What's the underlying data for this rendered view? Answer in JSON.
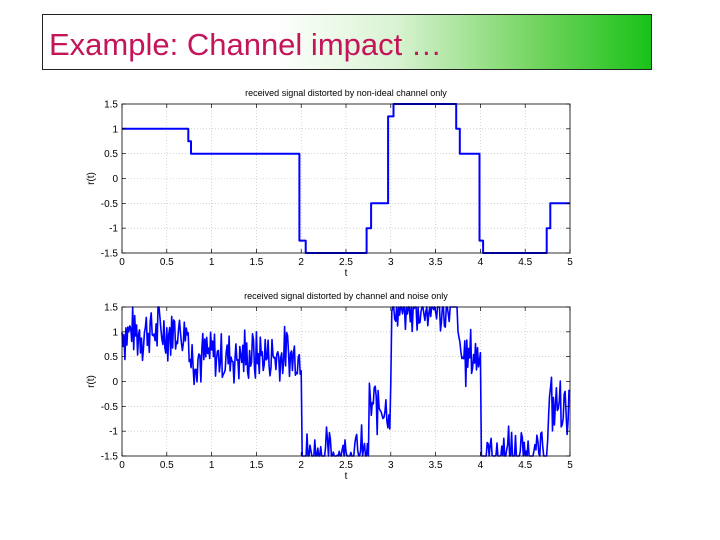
{
  "slide": {
    "title": "Example: Channel impact …"
  },
  "chart_data": [
    {
      "type": "line",
      "title": "received signal distorted by non-ideal channel only",
      "xlabel": "t",
      "ylabel": "r(t)",
      "xlim": [
        0,
        5
      ],
      "ylim": [
        -1.5,
        1.5
      ],
      "xticks": [
        "0",
        "0.5",
        "1",
        "1.5",
        "2",
        "2.5",
        "3",
        "3.5",
        "4",
        "4.5",
        "5"
      ],
      "yticks": [
        "1.5",
        "1",
        "0.5",
        "0",
        "-0.5",
        "-1",
        "-1.5"
      ],
      "grid": true,
      "color": "#0000ff",
      "x": [
        0,
        0.74,
        0.74,
        0.77,
        0.77,
        1.05,
        1.6,
        1.98,
        1.98,
        2.05,
        2.05,
        2.35,
        2.73,
        2.73,
        2.78,
        2.78,
        2.97,
        2.97,
        3.03,
        3.03,
        3.25,
        3.73,
        3.73,
        3.77,
        3.77,
        3.99,
        3.99,
        4.03,
        4.03,
        4.45,
        4.74,
        4.74,
        4.78,
        4.78,
        5
      ],
      "y": [
        1,
        1,
        0.75,
        0.75,
        0.5,
        0.5,
        0.5,
        0.5,
        -1.25,
        -1.25,
        -1.5,
        -1.5,
        -1.5,
        -1.0,
        -1.0,
        -0.5,
        -0.5,
        1.25,
        1.25,
        1.5,
        1.5,
        1.5,
        1.0,
        1.0,
        0.5,
        0.5,
        -1.25,
        -1.25,
        -1.5,
        -1.5,
        -1.5,
        -1.0,
        -1.0,
        -0.5,
        -0.5
      ]
    },
    {
      "type": "line",
      "title": "received signal distorted by channel and noise only",
      "xlabel": "t",
      "ylabel": "r(t)",
      "xlim": [
        0,
        5
      ],
      "ylim": [
        -1.5,
        1.5
      ],
      "xticks": [
        "0",
        "0.5",
        "1",
        "1.5",
        "2",
        "2.5",
        "3",
        "3.5",
        "4",
        "4.5",
        "5"
      ],
      "yticks": [
        "1.5",
        "1",
        "0.5",
        "0",
        "-0.5",
        "-1",
        "-1.5"
      ],
      "grid": true,
      "color": "#0000ff",
      "clean_signal": {
        "x": [
          0,
          0.75,
          0.75,
          2.0,
          2.0,
          2.75,
          2.75,
          3.0,
          3.0,
          3.75,
          3.75,
          4.0,
          4.0,
          4.75,
          4.75,
          5
        ],
        "y": [
          1,
          1,
          0.5,
          0.5,
          -1.5,
          -1.5,
          -0.5,
          -0.5,
          1.5,
          1.5,
          0.5,
          0.5,
          -1.5,
          -1.5,
          -0.5,
          -0.5
        ]
      },
      "noise_amplitude": 0.55
    }
  ]
}
